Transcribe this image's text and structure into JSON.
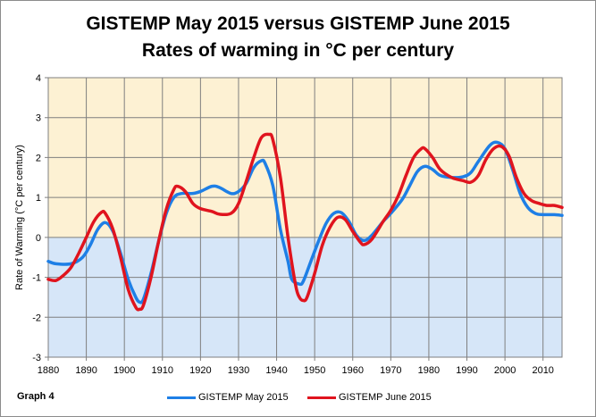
{
  "graph_label": "Graph 4",
  "colors": {
    "may": "#1e7fe6",
    "june": "#e0141e",
    "positive_fill": "#fdf1d3",
    "negative_fill": "#d6e6f8",
    "grid": "#7f7f7f"
  },
  "chart_data": {
    "type": "line",
    "title": "GISTEMP May 2015 versus GISTEMP June 2015",
    "subtitle": "Rates of warming in °C per century",
    "xlabel": "",
    "ylabel": "Rate of Warming (°C per century)",
    "xlim": [
      1880,
      2015
    ],
    "ylim": [
      -3,
      4
    ],
    "x_ticks": [
      1880,
      1890,
      1900,
      1910,
      1920,
      1930,
      1940,
      1950,
      1960,
      1970,
      1980,
      1990,
      2000,
      2010
    ],
    "y_ticks": [
      -3,
      -2,
      -1,
      0,
      1,
      2,
      3,
      4
    ],
    "grid": true,
    "legend_position": "bottom",
    "series": [
      {
        "name": "GISTEMP May 2015",
        "points": [
          [
            1880,
            -0.6
          ],
          [
            1882,
            -0.66
          ],
          [
            1886,
            -0.66
          ],
          [
            1889,
            -0.5
          ],
          [
            1891,
            -0.2
          ],
          [
            1893,
            0.2
          ],
          [
            1895,
            0.37
          ],
          [
            1897,
            0.15
          ],
          [
            1899,
            -0.4
          ],
          [
            1901,
            -1.05
          ],
          [
            1903,
            -1.5
          ],
          [
            1904,
            -1.62
          ],
          [
            1905,
            -1.55
          ],
          [
            1907,
            -0.9
          ],
          [
            1909,
            -0.1
          ],
          [
            1911,
            0.6
          ],
          [
            1913,
            1.0
          ],
          [
            1915,
            1.1
          ],
          [
            1918,
            1.1
          ],
          [
            1920,
            1.15
          ],
          [
            1923,
            1.28
          ],
          [
            1925,
            1.25
          ],
          [
            1928,
            1.1
          ],
          [
            1930,
            1.15
          ],
          [
            1932,
            1.35
          ],
          [
            1934,
            1.75
          ],
          [
            1936,
            1.92
          ],
          [
            1937,
            1.85
          ],
          [
            1939,
            1.3
          ],
          [
            1941,
            0.2
          ],
          [
            1943,
            -0.6
          ],
          [
            1944,
            -1.05
          ],
          [
            1946,
            -1.17
          ],
          [
            1947,
            -1.1
          ],
          [
            1949,
            -0.6
          ],
          [
            1951,
            -0.1
          ],
          [
            1953,
            0.35
          ],
          [
            1955,
            0.6
          ],
          [
            1957,
            0.62
          ],
          [
            1959,
            0.4
          ],
          [
            1961,
            0.05
          ],
          [
            1963,
            -0.08
          ],
          [
            1965,
            0.05
          ],
          [
            1968,
            0.4
          ],
          [
            1970,
            0.6
          ],
          [
            1973,
            0.95
          ],
          [
            1975,
            1.3
          ],
          [
            1977,
            1.65
          ],
          [
            1979,
            1.78
          ],
          [
            1981,
            1.7
          ],
          [
            1983,
            1.55
          ],
          [
            1986,
            1.5
          ],
          [
            1989,
            1.52
          ],
          [
            1991,
            1.62
          ],
          [
            1993,
            1.9
          ],
          [
            1996,
            2.3
          ],
          [
            1998,
            2.38
          ],
          [
            2000,
            2.22
          ],
          [
            2002,
            1.7
          ],
          [
            2004,
            1.1
          ],
          [
            2006,
            0.75
          ],
          [
            2008,
            0.6
          ],
          [
            2010,
            0.57
          ],
          [
            2013,
            0.57
          ],
          [
            2015,
            0.55
          ]
        ]
      },
      {
        "name": "GISTEMP June 2015",
        "points": [
          [
            1880,
            -1.05
          ],
          [
            1882,
            -1.08
          ],
          [
            1884,
            -0.95
          ],
          [
            1886,
            -0.75
          ],
          [
            1888,
            -0.4
          ],
          [
            1890,
            0.0
          ],
          [
            1892,
            0.4
          ],
          [
            1894,
            0.63
          ],
          [
            1895,
            0.6
          ],
          [
            1897,
            0.2
          ],
          [
            1899,
            -0.5
          ],
          [
            1901,
            -1.3
          ],
          [
            1903,
            -1.75
          ],
          [
            1904,
            -1.8
          ],
          [
            1905,
            -1.7
          ],
          [
            1907,
            -1.0
          ],
          [
            1909,
            -0.1
          ],
          [
            1911,
            0.7
          ],
          [
            1913,
            1.2
          ],
          [
            1914,
            1.28
          ],
          [
            1916,
            1.15
          ],
          [
            1918,
            0.85
          ],
          [
            1920,
            0.72
          ],
          [
            1923,
            0.65
          ],
          [
            1925,
            0.58
          ],
          [
            1928,
            0.6
          ],
          [
            1930,
            0.85
          ],
          [
            1932,
            1.4
          ],
          [
            1934,
            2.0
          ],
          [
            1936,
            2.5
          ],
          [
            1938,
            2.58
          ],
          [
            1939,
            2.45
          ],
          [
            1941,
            1.5
          ],
          [
            1943,
            0.0
          ],
          [
            1945,
            -1.2
          ],
          [
            1946,
            -1.5
          ],
          [
            1947,
            -1.58
          ],
          [
            1948,
            -1.5
          ],
          [
            1950,
            -0.9
          ],
          [
            1952,
            -0.2
          ],
          [
            1954,
            0.25
          ],
          [
            1956,
            0.5
          ],
          [
            1958,
            0.45
          ],
          [
            1960,
            0.15
          ],
          [
            1962,
            -0.12
          ],
          [
            1963,
            -0.18
          ],
          [
            1965,
            -0.05
          ],
          [
            1968,
            0.4
          ],
          [
            1970,
            0.68
          ],
          [
            1972,
            1.05
          ],
          [
            1974,
            1.55
          ],
          [
            1976,
            2.0
          ],
          [
            1978,
            2.22
          ],
          [
            1979,
            2.22
          ],
          [
            1981,
            2.0
          ],
          [
            1983,
            1.7
          ],
          [
            1986,
            1.5
          ],
          [
            1989,
            1.42
          ],
          [
            1991,
            1.38
          ],
          [
            1993,
            1.55
          ],
          [
            1995,
            1.95
          ],
          [
            1997,
            2.22
          ],
          [
            1999,
            2.28
          ],
          [
            2001,
            2.05
          ],
          [
            2003,
            1.5
          ],
          [
            2005,
            1.1
          ],
          [
            2007,
            0.92
          ],
          [
            2009,
            0.85
          ],
          [
            2011,
            0.8
          ],
          [
            2013,
            0.8
          ],
          [
            2015,
            0.75
          ]
        ]
      }
    ]
  }
}
